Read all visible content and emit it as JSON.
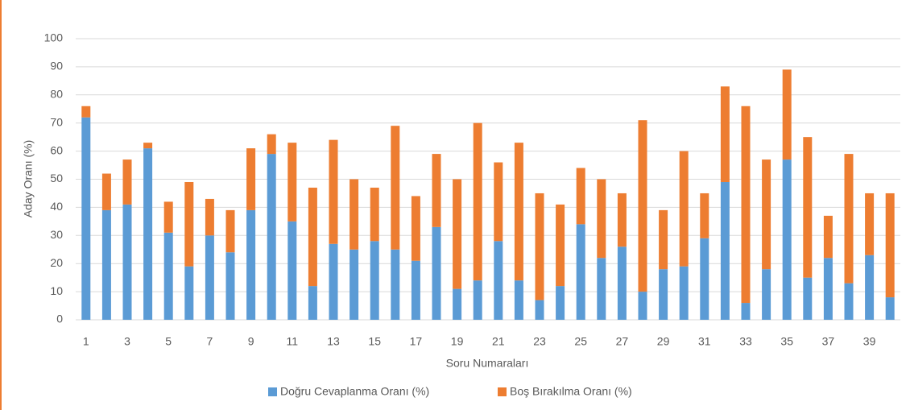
{
  "chart_data": {
    "type": "stacked_bar",
    "xlabel": "Soru Numaraları",
    "ylabel": "Aday Oranı (%)",
    "categories": [
      "1",
      null,
      "3",
      null,
      "5",
      null,
      "7",
      null,
      "9",
      null,
      "11",
      null,
      "13",
      null,
      "15",
      null,
      "17",
      null,
      "19",
      null,
      "21",
      null,
      "23",
      null,
      "25",
      null,
      "27",
      null,
      "29",
      null,
      "31",
      null,
      "33",
      null,
      "35",
      null,
      "37",
      null,
      "39",
      null
    ],
    "series": [
      {
        "name": "Doğru Cevaplanma Oranı (%)",
        "color": "#5b9bd5",
        "values": [
          72,
          39,
          41,
          61,
          31,
          19,
          30,
          24,
          39,
          59,
          35,
          12,
          27,
          25,
          28,
          25,
          21,
          33,
          11,
          14,
          28,
          14,
          7,
          12,
          34,
          22,
          26,
          10,
          18,
          19,
          29,
          49,
          6,
          18,
          57,
          15,
          22,
          13,
          23,
          8
        ]
      },
      {
        "name": "Boş Bırakılma Oranı (%)",
        "color": "#ed7d31",
        "values": [
          4,
          13,
          16,
          2,
          11,
          30,
          13,
          15,
          22,
          7,
          28,
          35,
          37,
          25,
          19,
          44,
          23,
          26,
          39,
          56,
          28,
          49,
          38,
          29,
          20,
          28,
          19,
          61,
          21,
          41,
          16,
          34,
          70,
          39,
          32,
          50,
          15,
          46,
          22,
          37
        ]
      }
    ],
    "ylim": [
      0,
      100
    ],
    "yticks": [
      0,
      10,
      20,
      30,
      40,
      50,
      60,
      70,
      80,
      90,
      100
    ],
    "grid": true,
    "legend": "bottom"
  }
}
